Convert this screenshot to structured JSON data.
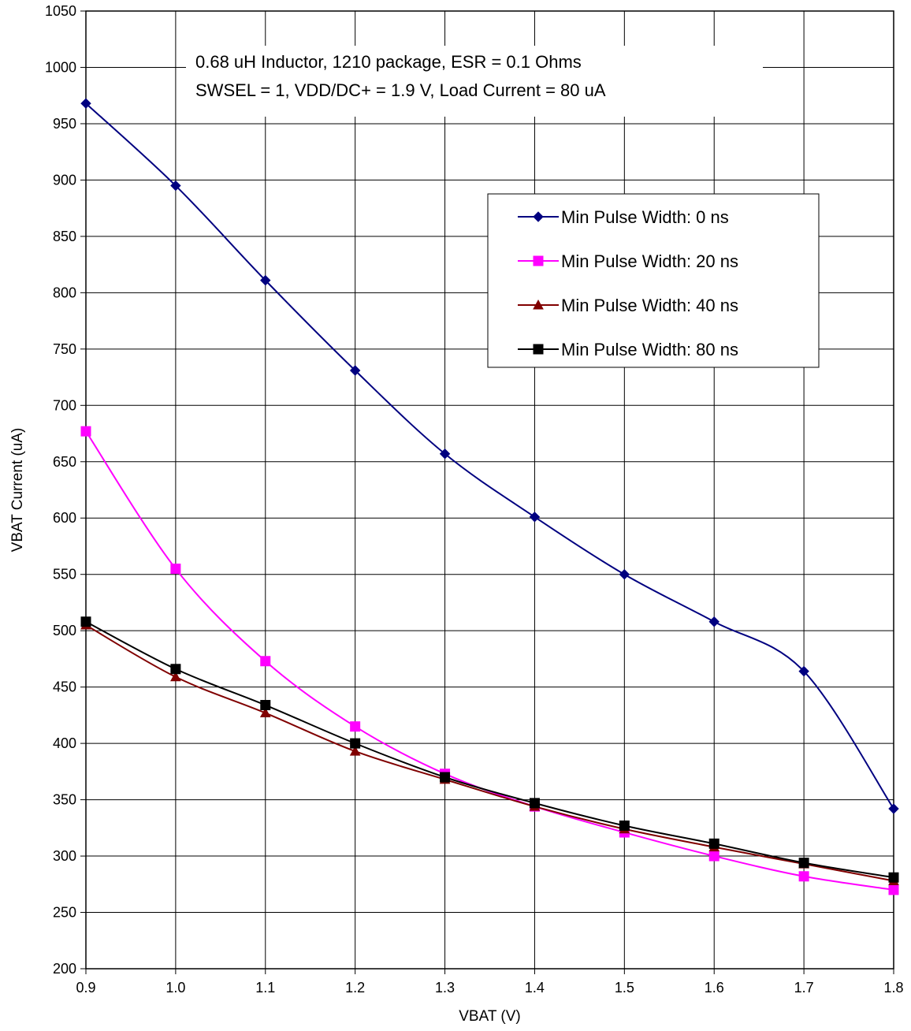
{
  "chart_data": {
    "type": "line",
    "xlabel": "VBAT (V)",
    "ylabel": "VBAT Current (uA)",
    "xlim": [
      0.9,
      1.8
    ],
    "ylim": [
      200,
      1050
    ],
    "xticks": [
      "0.9",
      "1.0",
      "1.1",
      "1.2",
      "1.3",
      "1.4",
      "1.5",
      "1.6",
      "1.7",
      "1.8"
    ],
    "yticks": [
      "200",
      "250",
      "300",
      "350",
      "400",
      "450",
      "500",
      "550",
      "600",
      "650",
      "700",
      "750",
      "800",
      "850",
      "900",
      "950",
      "1000",
      "1050"
    ],
    "grid": true,
    "legend_position": "upper-right",
    "annotation": [
      "0.68 uH Inductor, 1210 package, ESR = 0.1 Ohms",
      "SWSEL = 1,  VDD/DC+ = 1.9 V, Load Current = 80 uA"
    ],
    "x": [
      0.9,
      1.0,
      1.1,
      1.2,
      1.3,
      1.4,
      1.5,
      1.6,
      1.7,
      1.8
    ],
    "series": [
      {
        "name": "Min Pulse Width: 0 ns",
        "color": "#000080",
        "marker": "diamond",
        "values": [
          968,
          895,
          811,
          731,
          657,
          601,
          550,
          508,
          464,
          342
        ]
      },
      {
        "name": "Min Pulse Width: 20 ns",
        "color": "#FF00FF",
        "marker": "square",
        "values": [
          677,
          555,
          473,
          415,
          373,
          344,
          321,
          300,
          282,
          270
        ]
      },
      {
        "name": "Min Pulse Width: 40 ns",
        "color": "#800000",
        "marker": "triangle",
        "values": [
          505,
          459,
          427,
          393,
          368,
          344,
          324,
          308,
          293,
          278
        ]
      },
      {
        "name": "Min Pulse Width: 80 ns",
        "color": "#000000",
        "marker": "square",
        "values": [
          508,
          466,
          434,
          400,
          370,
          347,
          327,
          311,
          294,
          281
        ]
      }
    ]
  }
}
